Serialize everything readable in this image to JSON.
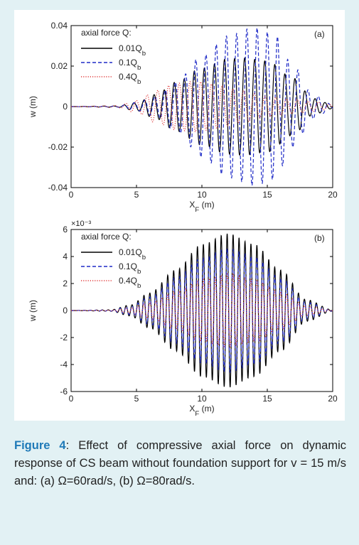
{
  "caption": {
    "label": "Figure 4",
    "text": ": Effect of compressive axial force on dynamic response of CS beam without foundation support for v = 15 m/s and: (a) Ω=60rad/s, (b) Ω=80rad/s."
  },
  "chart_data": [
    {
      "type": "line",
      "panel_label": "(a)",
      "xlabel": "X_F (m)",
      "ylabel": "w (m)",
      "xlim": [
        0,
        20
      ],
      "ylim": [
        -0.04,
        0.04
      ],
      "x_ticks": [
        "0",
        "5",
        "10",
        "15",
        "20"
      ],
      "y_ticks": [
        "-0.04",
        "-0.02",
        "0",
        "0.02",
        "0.04"
      ],
      "legend_title": "axial force Q:",
      "legend_position": "top-left",
      "grid": false,
      "series": [
        {
          "name": "0.01Q_b",
          "color": "#000000",
          "style": "solid",
          "env_x": [
            0,
            3.5,
            5,
            6.5,
            8,
            10,
            12,
            13.2,
            15,
            17,
            18.5,
            20
          ],
          "env_y": [
            0,
            0.0003,
            0.002,
            0.006,
            0.012,
            0.019,
            0.0235,
            0.024,
            0.0225,
            0.014,
            0.004,
            0.001
          ],
          "freq": 1.3,
          "phase": 0.0
        },
        {
          "name": "0.1Q_b",
          "color": "#1f2bc7",
          "style": "dashed",
          "env_x": [
            0,
            3.5,
            5,
            6.5,
            8,
            10,
            12,
            14,
            15.5,
            17,
            18.5,
            20
          ],
          "env_y": [
            0,
            0.0003,
            0.002,
            0.005,
            0.012,
            0.025,
            0.035,
            0.039,
            0.036,
            0.02,
            0.006,
            0.001
          ],
          "freq": 1.28,
          "phase": 0.3
        },
        {
          "name": "0.4Q_b",
          "color": "#e03a3a",
          "style": "dotted",
          "env_x": [
            0,
            3.5,
            5,
            6.5,
            8,
            9.5,
            11,
            13,
            15,
            17,
            18.5,
            20
          ],
          "env_y": [
            0,
            0.0005,
            0.003,
            0.008,
            0.0115,
            0.0125,
            0.011,
            0.008,
            0.005,
            0.0035,
            0.0025,
            0.001
          ],
          "freq": 1.22,
          "phase": 1.0
        }
      ]
    },
    {
      "type": "line",
      "panel_label": "(b)",
      "xlabel": "X_F (m)",
      "ylabel": "w (m)",
      "y_scale_note": "×10⁻³",
      "xlim": [
        0,
        20
      ],
      "ylim": [
        -6,
        6
      ],
      "x_ticks": [
        "0",
        "5",
        "10",
        "15",
        "20"
      ],
      "y_ticks": [
        "-6",
        "-4",
        "-2",
        "0",
        "2",
        "4",
        "6"
      ],
      "legend_title": "axial force Q:",
      "legend_position": "top-left",
      "grid": false,
      "series": [
        {
          "name": "0.01Q_b",
          "color": "#000000",
          "style": "solid",
          "env_x": [
            0,
            3,
            4.5,
            6,
            8,
            10,
            12,
            14,
            16,
            18,
            20
          ],
          "env_y": [
            0,
            0.05,
            0.4,
            1.3,
            3.0,
            4.9,
            5.7,
            4.9,
            3.0,
            0.8,
            0.05
          ],
          "freq": 2.2,
          "phase": 0.0
        },
        {
          "name": "0.1Q_b",
          "color": "#1f2bc7",
          "style": "dashed",
          "env_x": [
            0,
            3,
            4.5,
            6,
            8,
            10,
            12,
            14,
            16,
            18,
            20
          ],
          "env_y": [
            0,
            0.04,
            0.3,
            1.0,
            2.4,
            3.9,
            4.6,
            4.0,
            2.4,
            0.6,
            0.04
          ],
          "freq": 2.2,
          "phase": 0.0
        },
        {
          "name": "0.4Q_b",
          "color": "#e03a3a",
          "style": "dotted",
          "env_x": [
            0,
            3,
            4.5,
            6,
            8,
            10,
            12,
            14,
            16,
            18,
            20
          ],
          "env_y": [
            0,
            0.03,
            0.2,
            0.6,
            1.4,
            2.3,
            2.7,
            2.3,
            1.4,
            0.35,
            0.03
          ],
          "freq": 2.2,
          "phase": 0.0
        }
      ]
    }
  ]
}
